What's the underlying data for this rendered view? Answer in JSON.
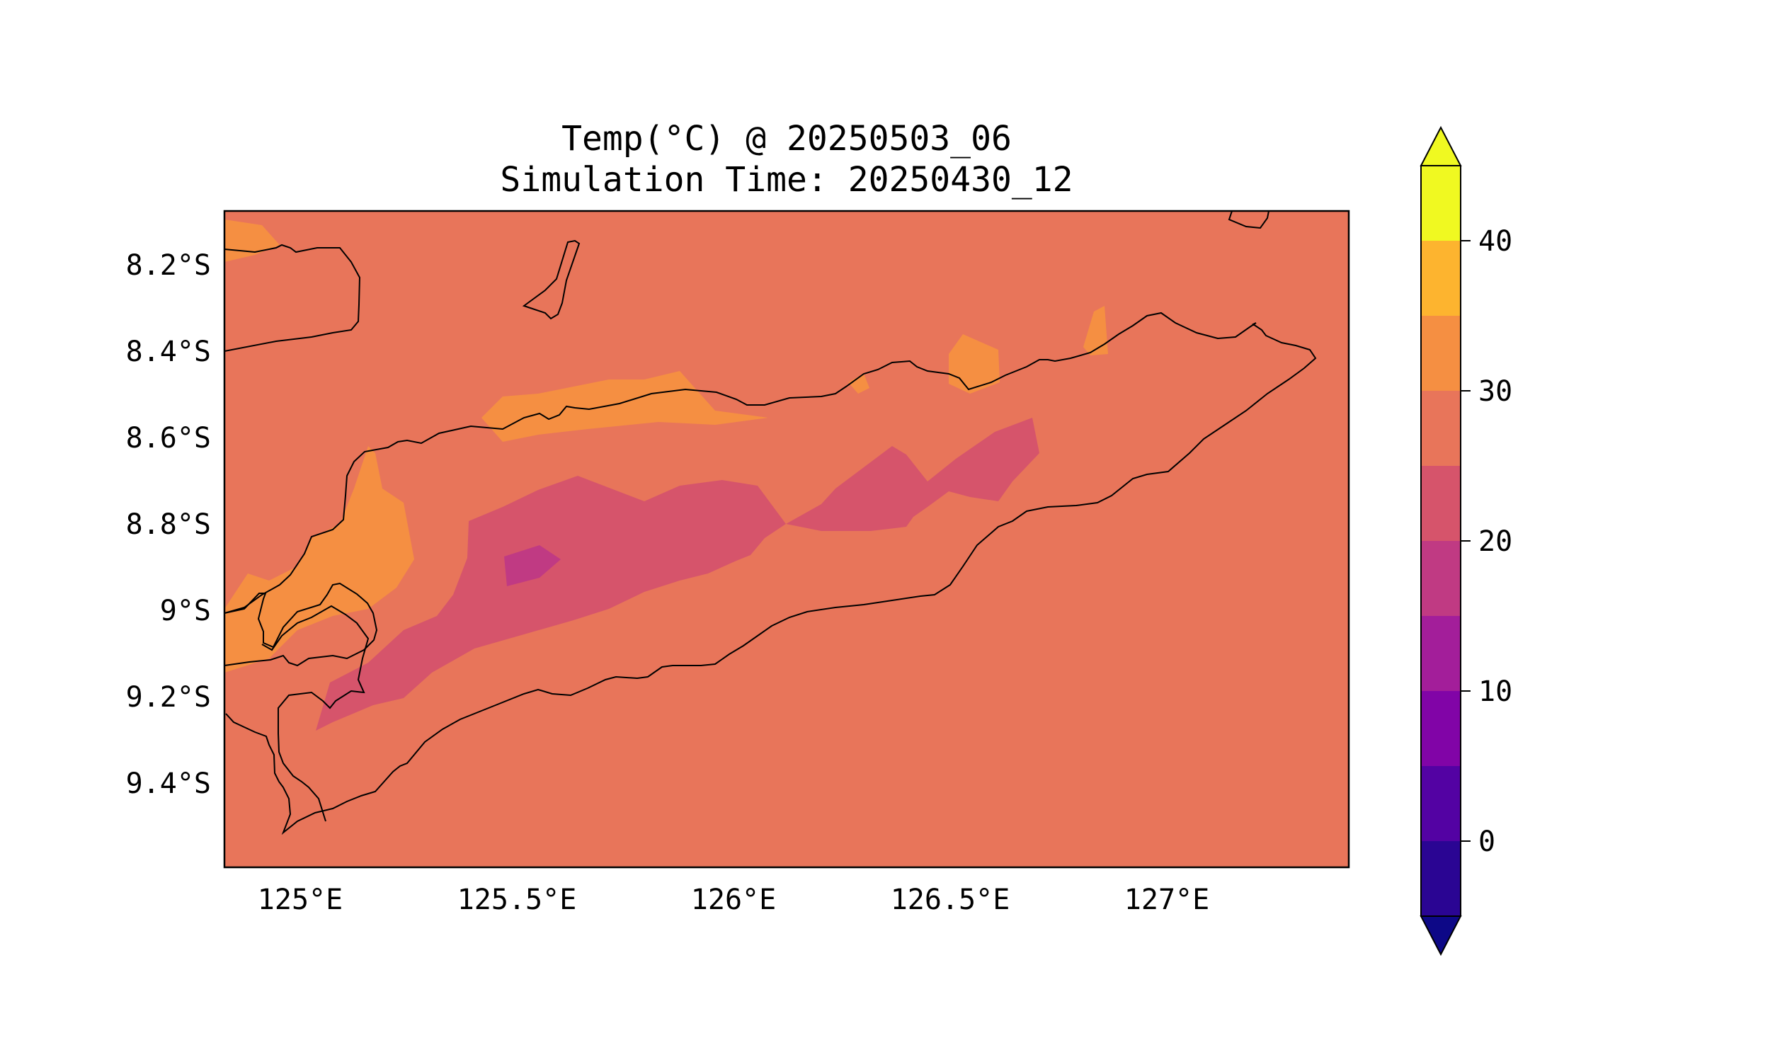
{
  "title": "Temp(°C) @ 20250503_06",
  "subtitle": "Simulation Time: 20250430_12",
  "map": {
    "lat_ticks": [
      "8.2°S",
      "8.4°S",
      "8.6°S",
      "8.8°S",
      "9°S",
      "9.2°S",
      "9.4°S"
    ],
    "lon_ticks": [
      "125°E",
      "125.5°E",
      "126°E",
      "126.5°E",
      "127°E"
    ],
    "lon_range": [
      124.82,
      127.42
    ],
    "lat_range": [
      -9.6,
      -8.08
    ],
    "background_fill": "#e8755a"
  },
  "colorbar": {
    "tick_labels": [
      "0",
      "10",
      "20",
      "30",
      "40"
    ],
    "levels": [
      -5,
      0,
      5,
      10,
      15,
      20,
      25,
      30,
      35,
      40,
      45
    ],
    "colors": [
      "#0d0887",
      "#2a0593",
      "#5302a3",
      "#8104a7",
      "#a31e9a",
      "#c03a83",
      "#d6546b",
      "#e8755a",
      "#f58f42",
      "#fdb42f",
      "#f0f921"
    ],
    "under_color": "#0d0887",
    "over_color": "#f0f921"
  }
}
